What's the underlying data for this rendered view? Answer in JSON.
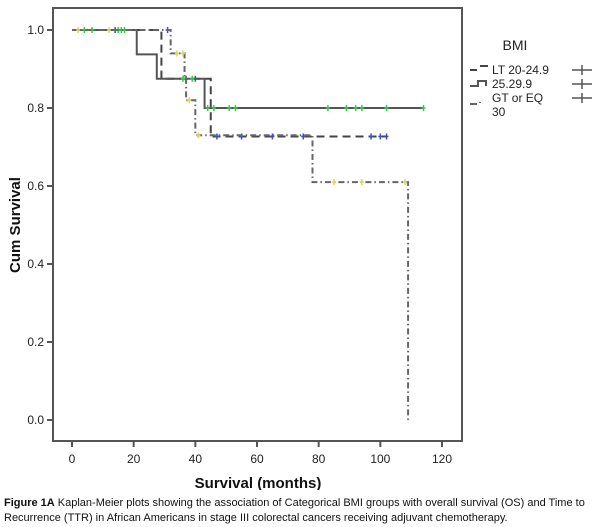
{
  "chart_data": {
    "type": "line",
    "subtype": "kaplan-meier-step",
    "title": "",
    "xlabel": "Survival (months)",
    "ylabel": "Cum Survival",
    "xlim": [
      0,
      125
    ],
    "ylim": [
      -0.05,
      1.05
    ],
    "xticks": [
      0,
      20,
      40,
      60,
      80,
      100,
      120
    ],
    "yticks": [
      0.0,
      0.2,
      0.4,
      0.6,
      0.8,
      1.0
    ],
    "ytick_labels": [
      "0.0",
      "0.2",
      "0.4",
      "0.6",
      "0.8",
      "1.0"
    ],
    "grid": false,
    "legend": {
      "title": "BMI",
      "placement": "right",
      "entries": [
        {
          "label": "LT 20-24.9",
          "style": "dashed"
        },
        {
          "label": "25.29.9",
          "style": "solid"
        },
        {
          "label_lines": [
            "GT or EQ",
            "30"
          ],
          "style": "dashdot"
        }
      ],
      "censor_symbol": "+"
    },
    "series": [
      {
        "name": "LT 20-24.9",
        "style": "dashed",
        "color": "#444444",
        "steps": [
          [
            0,
            1.0
          ],
          [
            29,
            0.875
          ],
          [
            45,
            0.727
          ]
        ],
        "end_time": 102,
        "censored": [
          [
            14,
            1.0
          ],
          [
            31,
            1.0
          ],
          [
            37,
            0.875
          ],
          [
            40,
            0.875
          ],
          [
            47,
            0.727
          ],
          [
            55,
            0.727
          ],
          [
            65,
            0.727
          ],
          [
            75,
            0.727
          ],
          [
            97,
            0.727
          ],
          [
            100,
            0.727
          ],
          [
            102,
            0.727
          ]
        ],
        "censor_color": "#3b4fc4"
      },
      {
        "name": "25.29.9",
        "style": "solid",
        "color": "#555555",
        "steps": [
          [
            0,
            1.0
          ],
          [
            21,
            0.9375
          ],
          [
            27.5,
            0.875
          ],
          [
            43,
            0.8
          ]
        ],
        "end_time": 114,
        "censored": [
          [
            4,
            1.0
          ],
          [
            6.5,
            1.0
          ],
          [
            15,
            1.0
          ],
          [
            16,
            1.0
          ],
          [
            17,
            1.0
          ],
          [
            36,
            0.875
          ],
          [
            39,
            0.875
          ],
          [
            44,
            0.8
          ],
          [
            46,
            0.8
          ],
          [
            51,
            0.8
          ],
          [
            53,
            0.8
          ],
          [
            83,
            0.8
          ],
          [
            89,
            0.8
          ],
          [
            92,
            0.8
          ],
          [
            94,
            0.8
          ],
          [
            102,
            0.8
          ],
          [
            114,
            0.8
          ]
        ],
        "censor_color": "#33cc44"
      },
      {
        "name": "GT or EQ 30",
        "style": "dashdot",
        "color": "#666666",
        "steps": [
          [
            0,
            1.0
          ],
          [
            32,
            0.94
          ],
          [
            36.5,
            0.875
          ],
          [
            37,
            0.82
          ],
          [
            40,
            0.73
          ],
          [
            78,
            0.61
          ],
          [
            109,
            0.0
          ]
        ],
        "end_time": 109,
        "censored": [
          [
            2,
            1.0
          ],
          [
            12,
            1.0
          ],
          [
            34,
            0.94
          ],
          [
            36,
            0.94
          ],
          [
            38,
            0.82
          ],
          [
            41,
            0.73
          ],
          [
            85,
            0.61
          ],
          [
            94,
            0.61
          ],
          [
            108,
            0.61
          ]
        ],
        "censor_color": "#d8d860"
      }
    ]
  },
  "caption": {
    "label": "Figure 1A",
    "text": " Kaplan-Meier plots showing the association of Categorical BMI groups with overall survival (OS) and Time to Recurrence (TTR) in African Americans in stage III colorectal cancers receiving adjuvant chemotherapy."
  }
}
